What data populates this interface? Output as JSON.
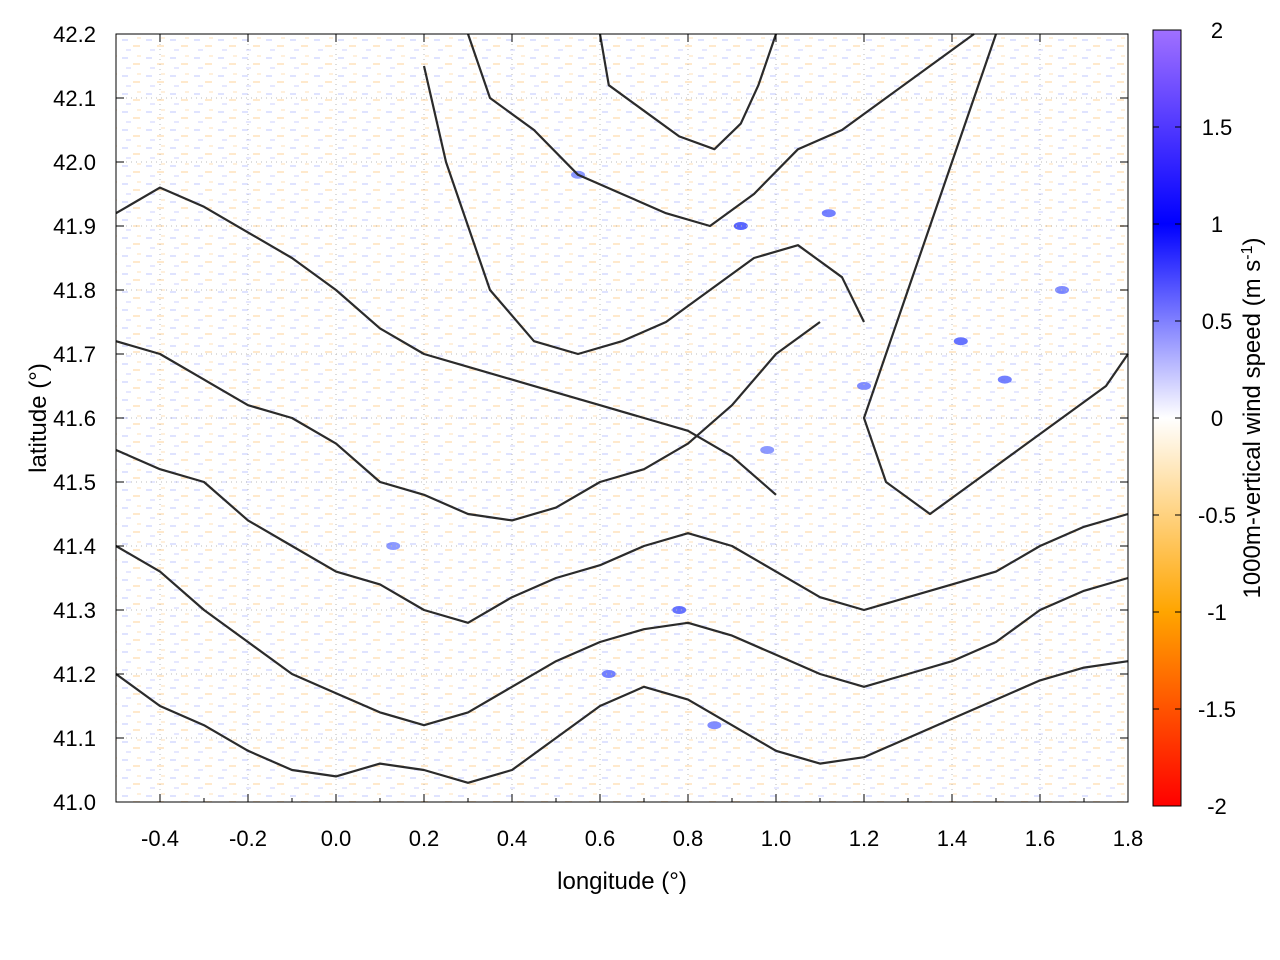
{
  "chart_data": {
    "type": "heatmap",
    "title": "",
    "xlabel": "longitude (°)",
    "ylabel": "latitude (°)",
    "xlim": [
      -0.5,
      1.8
    ],
    "ylim": [
      41.0,
      42.2
    ],
    "x_ticks": [
      "-0.4",
      "-0.2",
      "0.0",
      "0.2",
      "0.4",
      "0.6",
      "0.8",
      "1.0",
      "1.2",
      "1.4",
      "1.6",
      "1.8"
    ],
    "x_tick_values": [
      -0.4,
      -0.2,
      0.0,
      0.2,
      0.4,
      0.6,
      0.8,
      1.0,
      1.2,
      1.4,
      1.6,
      1.8
    ],
    "y_ticks": [
      "41.0",
      "41.1",
      "41.2",
      "41.3",
      "41.4",
      "41.5",
      "41.6",
      "41.7",
      "41.8",
      "41.9",
      "42.0",
      "42.1",
      "42.2"
    ],
    "y_tick_values": [
      41.0,
      41.1,
      41.2,
      41.3,
      41.4,
      41.5,
      41.6,
      41.7,
      41.8,
      41.9,
      42.0,
      42.1,
      42.2
    ],
    "grid": true,
    "colorbar": {
      "label": "1000m-vertical wind speed (m s",
      "label_sup": "-1",
      "label_end": ")",
      "range": [
        -2,
        2
      ],
      "ticks": [
        "2",
        "1.5",
        "1",
        "0.5",
        "0",
        "-0.5",
        "-1",
        "-1.5",
        "-2"
      ],
      "tick_values": [
        2,
        1.5,
        1,
        0.5,
        0,
        -0.5,
        -1,
        -1.5,
        -2
      ],
      "colors": {
        "-2": "#ff0000",
        "-1": "#ffa500",
        "0": "#ffffff",
        "1": "#0000ff",
        "2": "#a070ff"
      }
    },
    "contours": [
      {
        "name": "",
        "points": [
          [
            -0.5,
            41.92
          ],
          [
            -0.4,
            41.96
          ],
          [
            -0.3,
            41.93
          ],
          [
            -0.2,
            41.89
          ],
          [
            -0.1,
            41.85
          ],
          [
            0.0,
            41.8
          ],
          [
            0.1,
            41.74
          ],
          [
            0.2,
            41.7
          ],
          [
            0.3,
            41.68
          ],
          [
            0.4,
            41.66
          ],
          [
            0.5,
            41.64
          ],
          [
            0.6,
            41.62
          ],
          [
            0.7,
            41.6
          ],
          [
            0.8,
            41.58
          ],
          [
            0.9,
            41.54
          ],
          [
            1.0,
            41.48
          ]
        ]
      },
      {
        "name": "",
        "points": [
          [
            -0.5,
            41.72
          ],
          [
            -0.4,
            41.7
          ],
          [
            -0.3,
            41.66
          ],
          [
            -0.2,
            41.62
          ],
          [
            -0.1,
            41.6
          ],
          [
            0.0,
            41.56
          ],
          [
            0.1,
            41.5
          ],
          [
            0.2,
            41.48
          ],
          [
            0.3,
            41.45
          ],
          [
            0.4,
            41.44
          ],
          [
            0.5,
            41.46
          ],
          [
            0.6,
            41.5
          ],
          [
            0.7,
            41.52
          ],
          [
            0.8,
            41.56
          ],
          [
            0.9,
            41.62
          ],
          [
            1.0,
            41.7
          ],
          [
            1.1,
            41.75
          ]
        ]
      },
      {
        "name": "",
        "points": [
          [
            -0.5,
            41.55
          ],
          [
            -0.4,
            41.52
          ],
          [
            -0.3,
            41.5
          ],
          [
            -0.2,
            41.44
          ],
          [
            -0.1,
            41.4
          ],
          [
            0.0,
            41.36
          ],
          [
            0.1,
            41.34
          ],
          [
            0.2,
            41.3
          ],
          [
            0.3,
            41.28
          ],
          [
            0.4,
            41.32
          ],
          [
            0.5,
            41.35
          ],
          [
            0.6,
            41.37
          ],
          [
            0.7,
            41.4
          ],
          [
            0.8,
            41.42
          ],
          [
            0.9,
            41.4
          ],
          [
            1.0,
            41.36
          ],
          [
            1.1,
            41.32
          ],
          [
            1.2,
            41.3
          ],
          [
            1.3,
            41.32
          ],
          [
            1.4,
            41.34
          ],
          [
            1.5,
            41.36
          ],
          [
            1.6,
            41.4
          ],
          [
            1.7,
            41.43
          ],
          [
            1.8,
            41.45
          ]
        ]
      },
      {
        "name": "",
        "points": [
          [
            -0.5,
            41.4
          ],
          [
            -0.4,
            41.36
          ],
          [
            -0.3,
            41.3
          ],
          [
            -0.2,
            41.25
          ],
          [
            -0.1,
            41.2
          ],
          [
            0.0,
            41.17
          ],
          [
            0.1,
            41.14
          ],
          [
            0.2,
            41.12
          ],
          [
            0.3,
            41.14
          ],
          [
            0.4,
            41.18
          ],
          [
            0.5,
            41.22
          ],
          [
            0.6,
            41.25
          ],
          [
            0.7,
            41.27
          ],
          [
            0.8,
            41.28
          ],
          [
            0.9,
            41.26
          ],
          [
            1.0,
            41.23
          ],
          [
            1.1,
            41.2
          ],
          [
            1.2,
            41.18
          ],
          [
            1.3,
            41.2
          ],
          [
            1.4,
            41.22
          ],
          [
            1.5,
            41.25
          ],
          [
            1.6,
            41.3
          ],
          [
            1.7,
            41.33
          ],
          [
            1.8,
            41.35
          ]
        ]
      },
      {
        "name": "",
        "points": [
          [
            -0.5,
            41.2
          ],
          [
            -0.4,
            41.15
          ],
          [
            -0.3,
            41.12
          ],
          [
            -0.2,
            41.08
          ],
          [
            -0.1,
            41.05
          ],
          [
            0.0,
            41.04
          ],
          [
            0.1,
            41.06
          ],
          [
            0.2,
            41.05
          ],
          [
            0.3,
            41.03
          ],
          [
            0.4,
            41.05
          ],
          [
            0.5,
            41.1
          ],
          [
            0.6,
            41.15
          ],
          [
            0.7,
            41.18
          ],
          [
            0.8,
            41.16
          ],
          [
            0.9,
            41.12
          ],
          [
            1.0,
            41.08
          ],
          [
            1.1,
            41.06
          ],
          [
            1.2,
            41.07
          ],
          [
            1.3,
            41.1
          ],
          [
            1.4,
            41.13
          ],
          [
            1.5,
            41.16
          ],
          [
            1.6,
            41.19
          ],
          [
            1.7,
            41.21
          ],
          [
            1.8,
            41.22
          ]
        ]
      },
      {
        "name": "",
        "points": [
          [
            0.3,
            42.2
          ],
          [
            0.35,
            42.1
          ],
          [
            0.45,
            42.05
          ],
          [
            0.55,
            41.98
          ],
          [
            0.65,
            41.95
          ],
          [
            0.75,
            41.92
          ],
          [
            0.85,
            41.9
          ],
          [
            0.95,
            41.95
          ],
          [
            1.05,
            42.02
          ],
          [
            1.15,
            42.05
          ],
          [
            1.25,
            42.1
          ],
          [
            1.35,
            42.15
          ],
          [
            1.45,
            42.2
          ]
        ]
      },
      {
        "name": "",
        "points": [
          [
            0.6,
            42.2
          ],
          [
            0.62,
            42.12
          ],
          [
            0.7,
            42.08
          ],
          [
            0.78,
            42.04
          ],
          [
            0.86,
            42.02
          ],
          [
            0.92,
            42.06
          ],
          [
            0.96,
            42.12
          ],
          [
            1.0,
            42.2
          ]
        ]
      },
      {
        "name": "",
        "points": [
          [
            1.5,
            42.2
          ],
          [
            1.45,
            42.1
          ],
          [
            1.4,
            42.0
          ],
          [
            1.35,
            41.9
          ],
          [
            1.3,
            41.8
          ],
          [
            1.25,
            41.7
          ],
          [
            1.2,
            41.6
          ],
          [
            1.25,
            41.5
          ],
          [
            1.35,
            41.45
          ],
          [
            1.45,
            41.5
          ],
          [
            1.55,
            41.55
          ],
          [
            1.65,
            41.6
          ],
          [
            1.75,
            41.65
          ],
          [
            1.8,
            41.7
          ]
        ]
      },
      {
        "name": "",
        "points": [
          [
            0.2,
            42.15
          ],
          [
            0.25,
            42.0
          ],
          [
            0.3,
            41.9
          ],
          [
            0.35,
            41.8
          ],
          [
            0.45,
            41.72
          ],
          [
            0.55,
            41.7
          ],
          [
            0.65,
            41.72
          ],
          [
            0.75,
            41.75
          ],
          [
            0.85,
            41.8
          ],
          [
            0.95,
            41.85
          ],
          [
            1.05,
            41.87
          ],
          [
            1.15,
            41.82
          ],
          [
            1.2,
            41.75
          ]
        ]
      }
    ]
  }
}
